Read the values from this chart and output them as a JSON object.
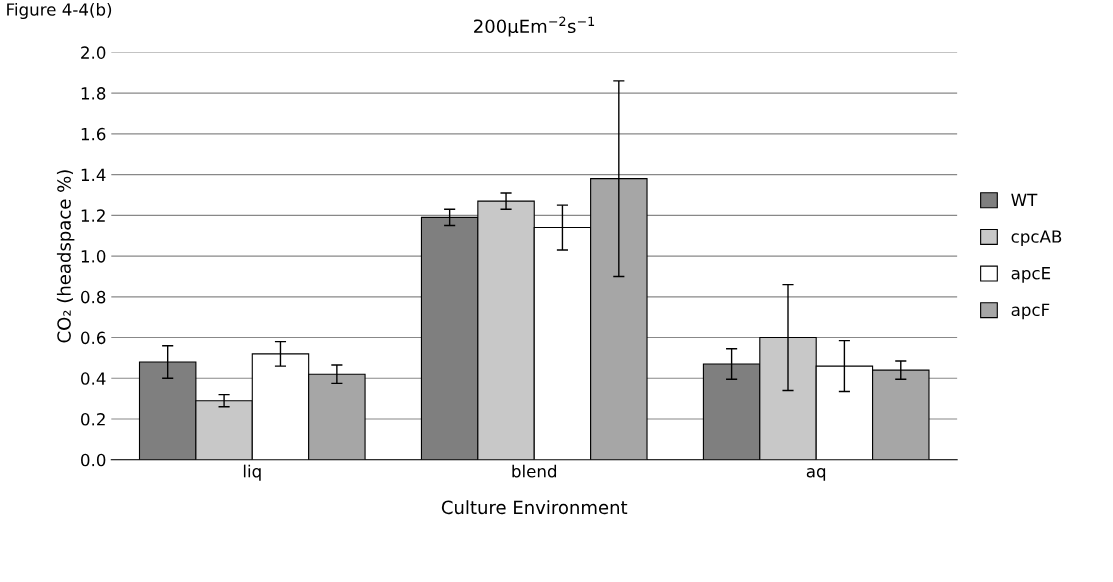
{
  "chart_data": {
    "type": "bar",
    "title": "200μEm$^{−2}$s$^{−1}$",
    "xlabel": "Culture Environment",
    "ylabel": "CO₂ (headspace %)",
    "annotations": [
      "Figure 4-4(b)"
    ],
    "categories": [
      "liq",
      "blend",
      "aq"
    ],
    "series": [
      {
        "name": "WT",
        "color": "#7f7f7f",
        "values": [
          0.48,
          1.19,
          0.47
        ],
        "errors": [
          0.08,
          0.04,
          0.075
        ]
      },
      {
        "name": "cpcAB",
        "color": "#c8c8c8",
        "values": [
          0.29,
          1.27,
          0.6
        ],
        "errors": [
          0.03,
          0.04,
          0.26
        ]
      },
      {
        "name": "apcE",
        "color": "#ffffff",
        "values": [
          0.52,
          1.14,
          0.46
        ],
        "errors": [
          0.06,
          0.11,
          0.125
        ]
      },
      {
        "name": "apcF",
        "color": "#a6a6a6",
        "values": [
          0.42,
          1.38,
          0.44
        ],
        "errors": [
          0.045,
          0.48,
          0.045
        ]
      }
    ],
    "ylim": [
      0,
      2.0
    ],
    "yticks": [
      {
        "value": 0,
        "label": "0.0"
      },
      {
        "value": 0.2,
        "label": "0.2"
      },
      {
        "value": 0.4,
        "label": "0.4"
      },
      {
        "value": 0.6,
        "label": "0.6"
      },
      {
        "value": 0.8,
        "label": "0.8"
      },
      {
        "value": 1.0,
        "label": "1.0"
      },
      {
        "value": 1.2,
        "label": "1.2"
      },
      {
        "value": 1.4,
        "label": "1.4"
      },
      {
        "value": 1.6,
        "label": "1.6"
      },
      {
        "value": 1.8,
        "label": "1.8"
      },
      {
        "value": 2.0,
        "label": "2.0"
      }
    ],
    "grid": "y",
    "legend": "right"
  }
}
